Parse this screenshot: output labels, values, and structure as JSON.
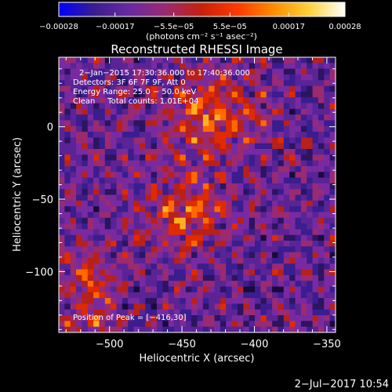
{
  "colorbar": {
    "ticks": [
      {
        "value": -0.00028,
        "label": "−0.00028"
      },
      {
        "value": -0.00017,
        "label": "−0.00017"
      },
      {
        "value": -5.5e-05,
        "label": "−5.5e−05"
      },
      {
        "value": 5.5e-05,
        "label": "5.5e−05"
      },
      {
        "value": 0.00017,
        "label": "0.00017"
      },
      {
        "value": 0.00028,
        "label": "0.00028"
      }
    ],
    "range": [
      -0.00028,
      0.00028
    ],
    "unit_label": "(photons cm⁻² s⁻¹ asec⁻²)",
    "colors": [
      "#0000ff",
      "#3a1d8f",
      "#6a2aa0",
      "#9b2a70",
      "#c8200c",
      "#ff3a00",
      "#ff8c00",
      "#ffd23a",
      "#ffffff"
    ]
  },
  "chart_data": {
    "type": "heatmap",
    "title": "Reconstructed RHESSI Image",
    "xlabel": "Heliocentric X (arcsec)",
    "ylabel": "Heliocentric Y (arcsec)",
    "xlim": [
      -535,
      -344
    ],
    "ylim": [
      -142,
      48
    ],
    "xticks": [
      {
        "value": -500,
        "label": "−500"
      },
      {
        "value": -450,
        "label": "−450"
      },
      {
        "value": -400,
        "label": "−400"
      },
      {
        "value": -350,
        "label": "−350"
      }
    ],
    "yticks": [
      {
        "value": 0,
        "label": "0"
      },
      {
        "value": -50,
        "label": "−50"
      },
      {
        "value": -100,
        "label": "−100"
      }
    ],
    "peak": [
      -416,
      30
    ],
    "annotations": {
      "time": "2−Jan−2015 17:30:36.000 to 17:40:36.000",
      "detectors": "Detectors: 3F 6F 7F 9F, Att 0",
      "energy": "Energy Range: 25.0 − 50.0 keV",
      "clean": "Clean     Total counts: 1.01E+04",
      "peak_text": "Position of Peak = [−416,30]"
    }
  },
  "footer": {
    "timestamp": "2−Jul−2017 10:54"
  }
}
